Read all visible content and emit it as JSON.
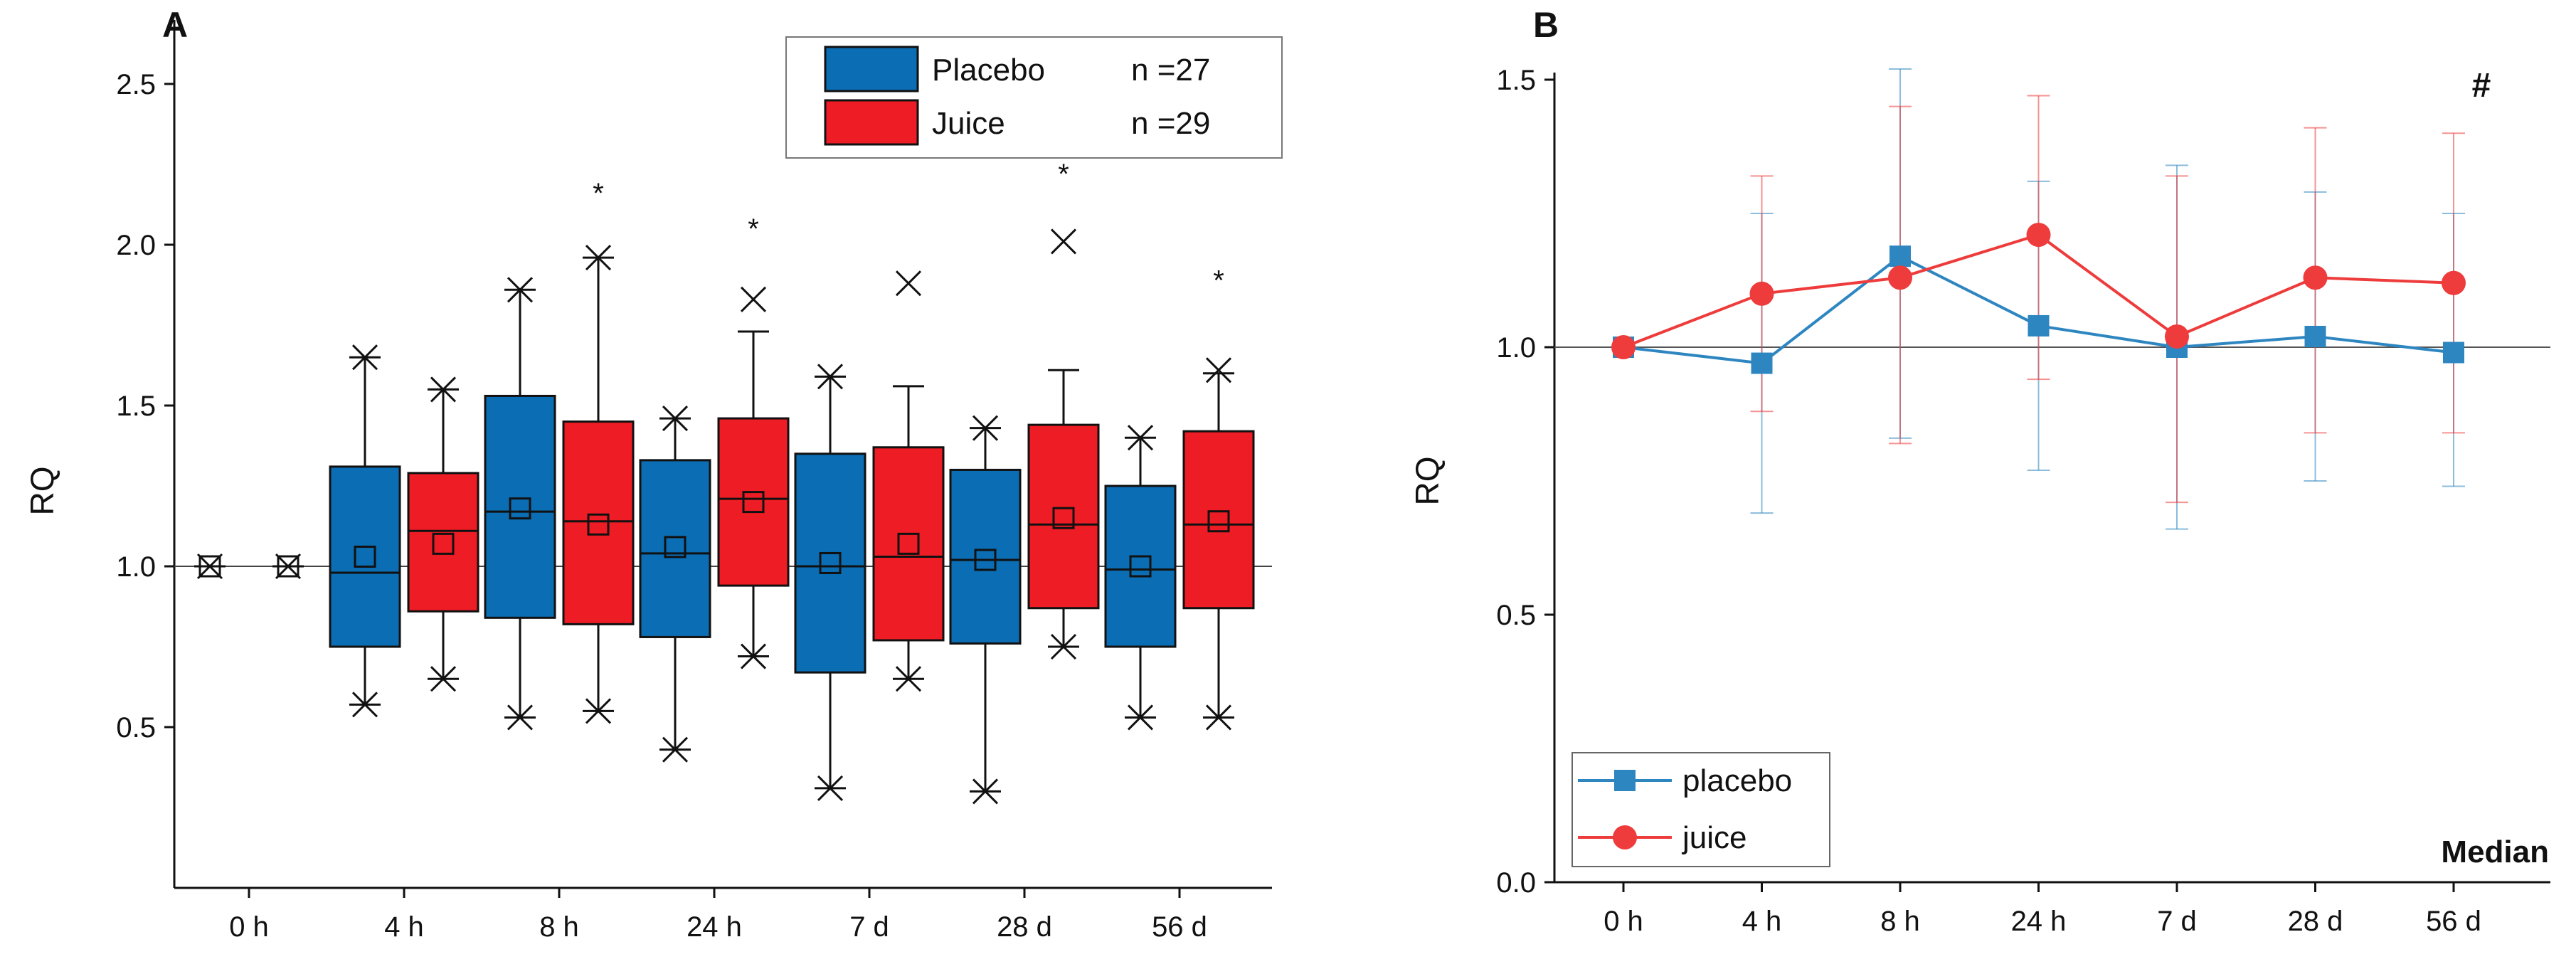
{
  "chart_data": [
    {
      "panel": "A",
      "type": "box",
      "title": "",
      "ylabel": "RQ",
      "xlabel": "",
      "ylim": [
        0,
        2.5
      ],
      "yticks": [
        "0.5",
        "1.0",
        "1.5",
        "2.0",
        "2.5"
      ],
      "categories": [
        "0 h",
        "4 h",
        "8 h",
        "24 h",
        "7 d",
        "28 d",
        "56 d"
      ],
      "reference_line": 1.0,
      "legend": [
        {
          "name": "Placebo",
          "n": "n =27",
          "color": "#0b6db3"
        },
        {
          "name": "Juice",
          "n": "n =29",
          "color": "#ee1c24"
        }
      ],
      "series": [
        {
          "name": "Placebo",
          "boxes": [
            {
              "cat": "0 h",
              "q1": 1.0,
              "median": 1.0,
              "q3": 1.0,
              "mean": 1.0,
              "wlo": 1.0,
              "whi": 1.0,
              "min": 1.0,
              "max": 1.0
            },
            {
              "cat": "4 h",
              "q1": 0.75,
              "median": 0.98,
              "q3": 1.31,
              "mean": 1.03,
              "wlo": 0.57,
              "whi": 1.65,
              "min": 0.57,
              "max": 1.65
            },
            {
              "cat": "8 h",
              "q1": 0.84,
              "median": 1.17,
              "q3": 1.53,
              "mean": 1.18,
              "wlo": 0.53,
              "whi": 1.86,
              "min": 0.53,
              "max": 1.86
            },
            {
              "cat": "24 h",
              "q1": 0.78,
              "median": 1.04,
              "q3": 1.33,
              "mean": 1.06,
              "wlo": 0.43,
              "whi": 1.46,
              "min": 0.43,
              "max": 1.46
            },
            {
              "cat": "7 d",
              "q1": 0.67,
              "median": 1.0,
              "q3": 1.35,
              "mean": 1.01,
              "wlo": 0.31,
              "whi": 1.59,
              "min": 0.31,
              "max": 1.59
            },
            {
              "cat": "28 d",
              "q1": 0.76,
              "median": 1.02,
              "q3": 1.3,
              "mean": 1.02,
              "wlo": 0.3,
              "whi": 1.43,
              "min": 0.3,
              "max": 1.43
            },
            {
              "cat": "56 d",
              "q1": 0.75,
              "median": 0.99,
              "q3": 1.25,
              "mean": 1.0,
              "wlo": 0.53,
              "whi": 1.4,
              "min": 0.53,
              "max": 1.4
            }
          ]
        },
        {
          "name": "Juice",
          "boxes": [
            {
              "cat": "0 h",
              "q1": 1.0,
              "median": 1.0,
              "q3": 1.0,
              "mean": 1.0,
              "wlo": 1.0,
              "whi": 1.0,
              "min": 1.0,
              "max": 1.0
            },
            {
              "cat": "4 h",
              "q1": 0.86,
              "median": 1.11,
              "q3": 1.29,
              "mean": 1.07,
              "wlo": 0.65,
              "whi": 1.55,
              "min": 0.65,
              "max": 1.55
            },
            {
              "cat": "8 h",
              "q1": 0.82,
              "median": 1.14,
              "q3": 1.45,
              "mean": 1.13,
              "wlo": 0.55,
              "whi": 1.96,
              "min": 0.55,
              "max": 1.96
            },
            {
              "cat": "24 h",
              "q1": 0.94,
              "median": 1.21,
              "q3": 1.46,
              "mean": 1.2,
              "wlo": 0.72,
              "whi": 1.73,
              "min": 0.72,
              "max": 1.83
            },
            {
              "cat": "7 d",
              "q1": 0.77,
              "median": 1.03,
              "q3": 1.37,
              "mean": 1.07,
              "wlo": 0.65,
              "whi": 1.56,
              "min": 0.65,
              "max": 1.88
            },
            {
              "cat": "28 d",
              "q1": 0.87,
              "median": 1.13,
              "q3": 1.44,
              "mean": 1.15,
              "wlo": 0.75,
              "whi": 1.61,
              "min": 0.75,
              "max": 2.01
            },
            {
              "cat": "56 d",
              "q1": 0.87,
              "median": 1.13,
              "q3": 1.42,
              "mean": 1.14,
              "wlo": 0.53,
              "whi": 1.6,
              "min": 0.53,
              "max": 1.61
            }
          ]
        }
      ],
      "significance": [
        {
          "cat": "8 h",
          "label": "*",
          "y": 2.13
        },
        {
          "cat": "24 h",
          "label": "*",
          "y": 2.02
        },
        {
          "cat": "28 d",
          "label": "*",
          "y": 2.19
        },
        {
          "cat": "56 d",
          "label": "*",
          "y": 1.86
        }
      ]
    },
    {
      "panel": "B",
      "type": "line",
      "title": "",
      "ylabel": "RQ",
      "xlabel": "",
      "ylim": [
        0,
        1.5
      ],
      "yticks": [
        "0.0",
        "0.5",
        "1.0",
        "1.5"
      ],
      "categories": [
        "0 h",
        "4 h",
        "8 h",
        "24 h",
        "7 d",
        "28 d",
        "56 d"
      ],
      "reference_line": 1.0,
      "annotation": "Median",
      "hash": "#",
      "legend": [
        {
          "name": "placebo",
          "color": "#2e86c1",
          "marker": "square"
        },
        {
          "name": "juice",
          "color": "#ee3b3b",
          "marker": "circle"
        }
      ],
      "series": [
        {
          "name": "placebo",
          "values": [
            1.0,
            0.97,
            1.17,
            1.04,
            1.0,
            1.02,
            0.99
          ],
          "err_lo": [
            1.0,
            0.69,
            0.83,
            0.77,
            0.66,
            0.75,
            0.74
          ],
          "err_hi": [
            1.0,
            1.25,
            1.52,
            1.31,
            1.34,
            1.29,
            1.25
          ]
        },
        {
          "name": "juice",
          "values": [
            1.0,
            1.1,
            1.13,
            1.21,
            1.02,
            1.13,
            1.12
          ],
          "err_lo": [
            1.0,
            0.88,
            0.82,
            0.94,
            0.71,
            0.84,
            0.84
          ],
          "err_hi": [
            1.0,
            1.32,
            1.45,
            1.47,
            1.32,
            1.41,
            1.4
          ]
        }
      ]
    }
  ]
}
